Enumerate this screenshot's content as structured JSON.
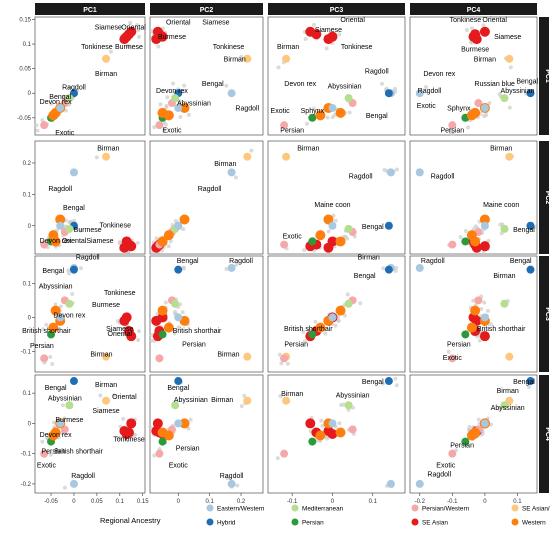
{
  "chart_data": {
    "type": "scatter",
    "columns": [
      "PC1",
      "PC2",
      "PC3",
      "PC4"
    ],
    "rows": [
      "PC1",
      "PC2",
      "PC3",
      "PC4"
    ],
    "axis_ranges": {
      "PC1": [
        -0.085,
        0.155
      ],
      "PC2": [
        -0.09,
        0.27
      ],
      "PC3": [
        -0.16,
        0.18
      ],
      "PC4": [
        -0.23,
        0.16
      ]
    },
    "x_ticks": {
      "PC1": [
        -0.05,
        0.0,
        0.05,
        0.1,
        0.15
      ],
      "PC2": [
        0.0,
        0.1,
        0.2
      ],
      "PC3": [
        -0.1,
        0.0,
        0.1
      ],
      "PC4": [
        -0.2,
        -0.1,
        0.0,
        0.1
      ]
    },
    "y_ticks": {
      "PC1": [
        0.15,
        0.1,
        0.05,
        0.0,
        -0.05
      ],
      "PC2": [
        0.2,
        0.1,
        0.0
      ],
      "PC3": [
        0.1,
        0.0,
        -0.1
      ],
      "PC4": [
        0.1,
        0.0,
        -0.1,
        -0.2
      ]
    },
    "legend": {
      "title": "Regional Ancestry",
      "entries": [
        {
          "name": "Eastern/Western",
          "color": "#a8c8e0"
        },
        {
          "name": "Hybrid",
          "color": "#1f6eb4"
        },
        {
          "name": "Mediterranean",
          "color": "#b5de8e"
        },
        {
          "name": "Persian",
          "color": "#2a9a3a"
        },
        {
          "name": "Persian/Western",
          "color": "#f4a8a8"
        },
        {
          "name": "SE Asian",
          "color": "#e41a1c"
        },
        {
          "name": "SE Asian/Persian",
          "color": "#fdc77d"
        },
        {
          "name": "Western",
          "color": "#ff7f0e"
        }
      ]
    },
    "breeds": [
      {
        "name": "Siamese",
        "group": "SE Asian",
        "pc": [
          0.12,
          -0.06,
          -0.04,
          -0.03
        ]
      },
      {
        "name": "Oriental",
        "group": "SE Asian",
        "pc": [
          0.125,
          -0.065,
          -0.055,
          0.0
        ]
      },
      {
        "name": "Tonkinese",
        "group": "SE Asian",
        "pc": [
          0.115,
          -0.05,
          0.0,
          -0.035
        ]
      },
      {
        "name": "Burmese",
        "group": "SE Asian",
        "pc": [
          0.11,
          -0.07,
          -0.01,
          -0.025
        ]
      },
      {
        "name": "Birman",
        "group": "SE Asian/Persian",
        "pc": [
          0.07,
          0.22,
          -0.115,
          0.075
        ]
      },
      {
        "name": "Ragdoll",
        "group": "Eastern/Western",
        "pc": [
          0.0,
          0.17,
          0.145,
          -0.2
        ]
      },
      {
        "name": "Bengal",
        "group": "Hybrid",
        "pc": [
          0.0,
          0.0,
          0.14,
          0.14
        ]
      },
      {
        "name": "Devon rex",
        "group": "Persian/Western",
        "pc": [
          -0.02,
          -0.02,
          0.05,
          -0.02
        ]
      },
      {
        "name": "Abyssinian",
        "group": "Mediterranean",
        "pc": [
          -0.01,
          -0.01,
          0.04,
          0.06
        ]
      },
      {
        "name": "Exotic",
        "group": "Persian/Western",
        "pc": [
          -0.065,
          -0.06,
          -0.12,
          -0.1
        ]
      },
      {
        "name": "Persian",
        "group": "Persian",
        "pc": [
          -0.05,
          -0.05,
          -0.05,
          -0.06
        ]
      },
      {
        "name": "Sphynx",
        "group": "Western",
        "pc": [
          -0.04,
          -0.05,
          0.02,
          -0.03
        ]
      },
      {
        "name": "Maine coon",
        "group": "Western",
        "pc": [
          -0.03,
          0.02,
          -0.01,
          0.0
        ]
      },
      {
        "name": "British shorthair",
        "group": "Western",
        "pc": [
          -0.045,
          -0.03,
          -0.03,
          -0.04
        ]
      },
      {
        "name": "Russian blue",
        "group": "Eastern/Western",
        "pc": [
          -0.03,
          0.0,
          0.0,
          0.0
        ]
      }
    ],
    "panel_labels": [
      {
        "panel": [
          0,
          0
        ],
        "labels": [
          [
            "Siamese",
            0.075,
            0.13
          ],
          [
            "Oriental",
            0.13,
            0.13
          ],
          [
            "Tonkinese",
            0.05,
            0.09
          ],
          [
            "Burmese",
            0.12,
            0.09
          ],
          [
            "Birman",
            0.07,
            0.035
          ],
          [
            "Ragdoll",
            0.0,
            0.008
          ],
          [
            "Bengal",
            -0.03,
            -0.012
          ],
          [
            "Devon rex",
            -0.04,
            -0.022
          ],
          [
            "Exotic",
            -0.02,
            -0.085
          ]
        ]
      },
      {
        "panel": [
          0,
          1
        ],
        "labels": [
          [
            "Oriental",
            0.0,
            0.14
          ],
          [
            "Siamese",
            0.12,
            0.14
          ],
          [
            "Tonkinese",
            0.16,
            0.09
          ],
          [
            "Burmese",
            -0.02,
            0.11
          ],
          [
            "Birman",
            0.18,
            0.065
          ],
          [
            "Devon rex",
            -0.02,
            0.0
          ],
          [
            "Bengal",
            0.11,
            0.015
          ],
          [
            "Abyssinian",
            0.05,
            -0.025
          ],
          [
            "Ragdoll",
            0.22,
            -0.035
          ],
          [
            "Exotic",
            -0.02,
            -0.08
          ]
        ]
      },
      {
        "panel": [
          0,
          2
        ],
        "labels": [
          [
            "Oriental",
            0.05,
            0.145
          ],
          [
            "Siamese",
            -0.01,
            0.125
          ],
          [
            "Tonkinese",
            0.06,
            0.09
          ],
          [
            "Birman",
            -0.11,
            0.09
          ],
          [
            "Ragdoll",
            0.11,
            0.04
          ],
          [
            "Devon rex",
            -0.08,
            0.015
          ],
          [
            "Abyssinian",
            0.03,
            0.01
          ],
          [
            "Bengal",
            0.11,
            -0.05
          ],
          [
            "Exotic",
            -0.13,
            -0.04
          ],
          [
            "Sphynx",
            -0.05,
            -0.04
          ],
          [
            "Persian",
            -0.1,
            -0.08
          ]
        ]
      },
      {
        "panel": [
          0,
          3
        ],
        "labels": [
          [
            "Tonkinese",
            -0.06,
            0.145
          ],
          [
            "Oriental",
            0.03,
            0.145
          ],
          [
            "Siamese",
            0.07,
            0.11
          ],
          [
            "Burmese",
            -0.03,
            0.085
          ],
          [
            "Birman",
            0.0,
            0.065
          ],
          [
            "Devon rex",
            -0.14,
            0.035
          ],
          [
            "Russian blue",
            0.03,
            0.015
          ],
          [
            "Bengal",
            0.13,
            0.02
          ],
          [
            "Ragdoll",
            -0.17,
            0.0
          ],
          [
            "Abyssinian",
            0.1,
            0.0
          ],
          [
            "Exotic",
            -0.18,
            -0.03
          ],
          [
            "Sphynx",
            -0.08,
            -0.035
          ],
          [
            "Persian",
            -0.1,
            -0.08
          ]
        ]
      },
      {
        "panel": [
          1,
          0
        ],
        "labels": [
          [
            "Birman",
            0.075,
            0.24
          ],
          [
            "Ragdoll",
            -0.03,
            0.11
          ],
          [
            "Bengal",
            0.0,
            0.05
          ],
          [
            "Burmese",
            0.03,
            -0.02
          ],
          [
            "Tonkinese",
            0.09,
            -0.005
          ],
          [
            "Devon rex",
            -0.04,
            -0.055
          ],
          [
            "OrientalSiamese",
            0.03,
            -0.055
          ]
        ]
      },
      {
        "panel": [
          1,
          1
        ],
        "labels": [
          [
            "Birman",
            0.15,
            0.19
          ],
          [
            "Ragdoll",
            0.1,
            0.11
          ]
        ]
      },
      {
        "panel": [
          1,
          2
        ],
        "labels": [
          [
            "Birman",
            -0.06,
            0.24
          ],
          [
            "Ragdoll",
            0.07,
            0.15
          ],
          [
            "Maine coon",
            0.0,
            0.06
          ],
          [
            "Bengal",
            0.1,
            -0.01
          ],
          [
            "Exotic",
            -0.1,
            -0.04
          ]
        ]
      },
      {
        "panel": [
          1,
          3
        ],
        "labels": [
          [
            "Birman",
            0.05,
            0.24
          ],
          [
            "Ragdoll",
            -0.13,
            0.15
          ],
          [
            "Maine coon",
            0.05,
            0.06
          ],
          [
            "Bengal",
            0.12,
            -0.02
          ]
        ]
      },
      {
        "panel": [
          2,
          0
        ],
        "labels": [
          [
            "Ragdoll",
            0.03,
            0.17
          ],
          [
            "Bengal",
            -0.045,
            0.13
          ],
          [
            "Abyssinian",
            -0.04,
            0.085
          ],
          [
            "Tonkinese",
            0.1,
            0.065
          ],
          [
            "Burmese",
            0.07,
            0.03
          ],
          [
            "Devon rex",
            -0.01,
            0.0
          ],
          [
            "Siamese",
            0.1,
            -0.04
          ],
          [
            "British shorthair",
            -0.06,
            -0.045
          ],
          [
            "Oriental",
            0.1,
            -0.055
          ],
          [
            "Persian",
            -0.07,
            -0.09
          ],
          [
            "Birman",
            0.06,
            -0.115
          ]
        ]
      },
      {
        "panel": [
          2,
          1
        ],
        "labels": [
          [
            "Bengal",
            0.03,
            0.16
          ],
          [
            "Ragdoll",
            0.2,
            0.16
          ],
          [
            "British shorthair",
            0.06,
            -0.045
          ],
          [
            "Persian",
            0.05,
            -0.085
          ],
          [
            "Birman",
            0.16,
            -0.115
          ]
        ]
      },
      {
        "panel": [
          2,
          2
        ],
        "labels": [
          [
            "Birman",
            0.09,
            0.17
          ],
          [
            "Bengal",
            0.08,
            0.115
          ],
          [
            "British shorthair",
            -0.06,
            -0.04
          ],
          [
            "Persian",
            -0.09,
            -0.085
          ]
        ]
      },
      {
        "panel": [
          2,
          3
        ],
        "labels": [
          [
            "Ragdoll",
            -0.16,
            0.16
          ],
          [
            "Bengal",
            0.11,
            0.16
          ],
          [
            "Birman",
            0.06,
            0.115
          ],
          [
            "British shorthair",
            0.05,
            -0.04
          ],
          [
            "Persian",
            -0.08,
            -0.085
          ],
          [
            "Exotic",
            -0.1,
            -0.125
          ]
        ]
      },
      {
        "panel": [
          3,
          0
        ],
        "labels": [
          [
            "Bengal",
            -0.04,
            0.11
          ],
          [
            "Birman",
            0.07,
            0.12
          ],
          [
            "Abyssinian",
            -0.02,
            0.075
          ],
          [
            "Oriental",
            0.11,
            0.08
          ],
          [
            "Siamese",
            0.07,
            0.035
          ],
          [
            "Burmese",
            -0.01,
            0.005
          ],
          [
            "Devon rex",
            -0.04,
            -0.045
          ],
          [
            "Tonkinese",
            0.12,
            -0.06
          ],
          [
            "Persian",
            -0.045,
            -0.1
          ],
          [
            "British shorthair",
            0.01,
            -0.1
          ],
          [
            "Exotic",
            -0.06,
            -0.145
          ],
          [
            "Ragdoll",
            0.02,
            -0.18
          ]
        ]
      },
      {
        "panel": [
          3,
          1
        ],
        "labels": [
          [
            "Bengal",
            0.0,
            0.11
          ],
          [
            "Abyssinian",
            0.04,
            0.07
          ],
          [
            "Birman",
            0.14,
            0.07
          ],
          [
            "Persian",
            0.03,
            -0.09
          ],
          [
            "Exotic",
            0.0,
            -0.145
          ],
          [
            "Ragdoll",
            0.17,
            -0.18
          ]
        ]
      },
      {
        "panel": [
          3,
          2
        ],
        "labels": [
          [
            "Bengal",
            0.1,
            0.13
          ],
          [
            "Birman",
            -0.1,
            0.09
          ],
          [
            "Abyssinian",
            0.05,
            0.085
          ]
        ]
      },
      {
        "panel": [
          3,
          3
        ],
        "labels": [
          [
            "Bengal",
            0.12,
            0.13
          ],
          [
            "Birman",
            0.07,
            0.1
          ],
          [
            "Abyssinian",
            0.07,
            0.045
          ],
          [
            "Persian",
            -0.07,
            -0.08
          ],
          [
            "Exotic",
            -0.12,
            -0.145
          ],
          [
            "Ragdoll",
            -0.14,
            -0.175
          ]
        ]
      }
    ]
  }
}
